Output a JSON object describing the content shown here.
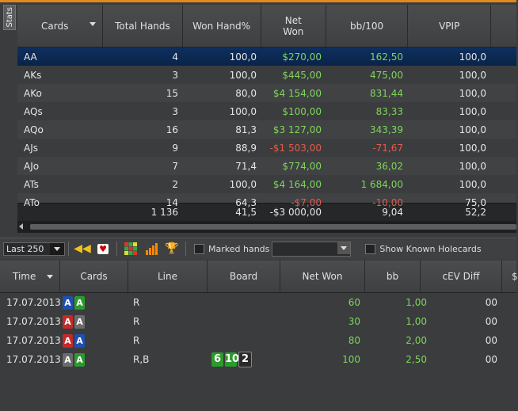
{
  "panel_tab": "Stats",
  "stats_table": {
    "columns": [
      "Cards",
      "Total Hands",
      "Won Hand%",
      "Net\nWon",
      "bb/100",
      "VPIP"
    ],
    "rows": [
      {
        "cards": "AA",
        "total": "4",
        "won_pct": "100,0",
        "net": "$270,00",
        "bb100": "162,50",
        "vpip": "100,0",
        "sign": "pos",
        "selected": true
      },
      {
        "cards": "AKs",
        "total": "3",
        "won_pct": "100,0",
        "net": "$445,00",
        "bb100": "475,00",
        "vpip": "100,0",
        "sign": "pos"
      },
      {
        "cards": "AKo",
        "total": "15",
        "won_pct": "80,0",
        "net": "$4 154,00",
        "bb100": "831,44",
        "vpip": "100,0",
        "sign": "pos"
      },
      {
        "cards": "AQs",
        "total": "3",
        "won_pct": "100,0",
        "net": "$100,00",
        "bb100": "83,33",
        "vpip": "100,0",
        "sign": "pos"
      },
      {
        "cards": "AQo",
        "total": "16",
        "won_pct": "81,3",
        "net": "$3 127,00",
        "bb100": "343,39",
        "vpip": "100,0",
        "sign": "pos"
      },
      {
        "cards": "AJs",
        "total": "9",
        "won_pct": "88,9",
        "net": "-$1 503,00",
        "bb100": "-71,67",
        "vpip": "100,0",
        "sign": "neg"
      },
      {
        "cards": "AJo",
        "total": "7",
        "won_pct": "71,4",
        "net": "$774,00",
        "bb100": "36,02",
        "vpip": "100,0",
        "sign": "pos"
      },
      {
        "cards": "ATs",
        "total": "2",
        "won_pct": "100,0",
        "net": "$4 164,00",
        "bb100": "1 684,00",
        "vpip": "100,0",
        "sign": "pos"
      },
      {
        "cards": "ATo",
        "total": "14",
        "won_pct": "64,3",
        "net": "-$7,00",
        "bb100": "-10,00",
        "vpip": "75,0",
        "sign": "neg"
      }
    ],
    "totals": {
      "total": "1 136",
      "won_pct": "41,5",
      "net": "-$3 000,00",
      "bb100": "9,04",
      "vpip": "52,2"
    }
  },
  "toolbar": {
    "range_select": "Last 250",
    "marked_hands_label": "Marked hands",
    "show_holecards_label": "Show Known Holecards"
  },
  "hands_table": {
    "columns": [
      "Time",
      "Cards",
      "Line",
      "Board",
      "Net Won",
      "bb",
      "cEV Diff",
      "$"
    ],
    "rows": [
      {
        "time": "17.07.2013",
        "cards": [
          {
            "r": "A",
            "c": "b"
          },
          {
            "r": "A",
            "c": "g"
          }
        ],
        "line": "R",
        "board": [],
        "net": "60",
        "bb": "1,00",
        "cev": "00"
      },
      {
        "time": "17.07.2013",
        "cards": [
          {
            "r": "A",
            "c": "red"
          },
          {
            "r": "A",
            "c": "gr"
          }
        ],
        "line": "R",
        "board": [],
        "net": "30",
        "bb": "1,00",
        "cev": "00"
      },
      {
        "time": "17.07.2013",
        "cards": [
          {
            "r": "A",
            "c": "red"
          },
          {
            "r": "A",
            "c": "b"
          }
        ],
        "line": "R",
        "board": [],
        "net": "80",
        "bb": "2,00",
        "cev": "00"
      },
      {
        "time": "17.07.2013",
        "cards": [
          {
            "r": "A",
            "c": "gr"
          },
          {
            "r": "A",
            "c": "g"
          }
        ],
        "line": "R,B",
        "board": [
          {
            "r": "6",
            "c": "g"
          },
          {
            "r": "10",
            "c": "g"
          },
          {
            "r": "2",
            "c": "k"
          }
        ],
        "net": "100",
        "bb": "2,50",
        "cev": "00"
      }
    ]
  }
}
